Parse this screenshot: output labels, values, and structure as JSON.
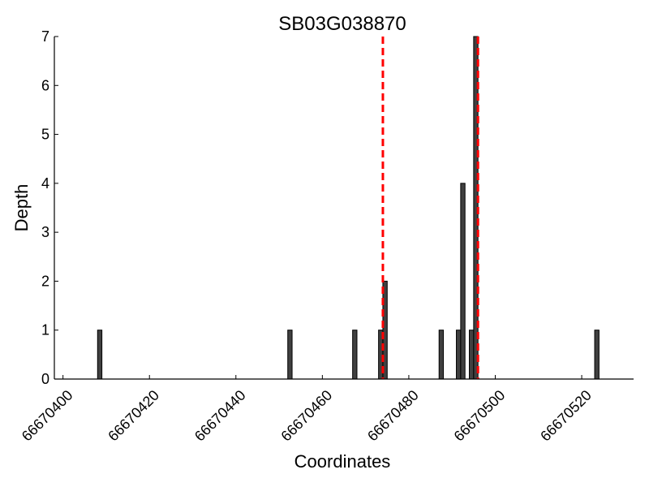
{
  "chart_data": {
    "type": "bar",
    "title": "SB03G038870",
    "xlabel": "Coordinates",
    "ylabel": "Depth",
    "xlim": [
      66670398,
      66670532
    ],
    "ylim": [
      0,
      7
    ],
    "xticks": [
      66670400,
      66670420,
      66670440,
      66670460,
      66670480,
      66670500,
      66670520
    ],
    "yticks": [
      0,
      1,
      2,
      3,
      4,
      5,
      6,
      7
    ],
    "bar_color": "#404040",
    "bar_width": 1,
    "bars": [
      {
        "x": 66670408,
        "y": 1
      },
      {
        "x": 66670452,
        "y": 1
      },
      {
        "x": 66670467,
        "y": 1
      },
      {
        "x": 66670473,
        "y": 1
      },
      {
        "x": 66670474,
        "y": 2
      },
      {
        "x": 66670487,
        "y": 1
      },
      {
        "x": 66670491,
        "y": 1
      },
      {
        "x": 66670492,
        "y": 4
      },
      {
        "x": 66670494,
        "y": 1
      },
      {
        "x": 66670495,
        "y": 7
      },
      {
        "x": 66670523,
        "y": 1
      }
    ],
    "reference_lines": [
      {
        "x": 66670474,
        "color": "#ff0000",
        "style": "dashed"
      },
      {
        "x": 66670496,
        "color": "#ff0000",
        "style": "dashed"
      }
    ],
    "grid": false,
    "legend": "none"
  }
}
